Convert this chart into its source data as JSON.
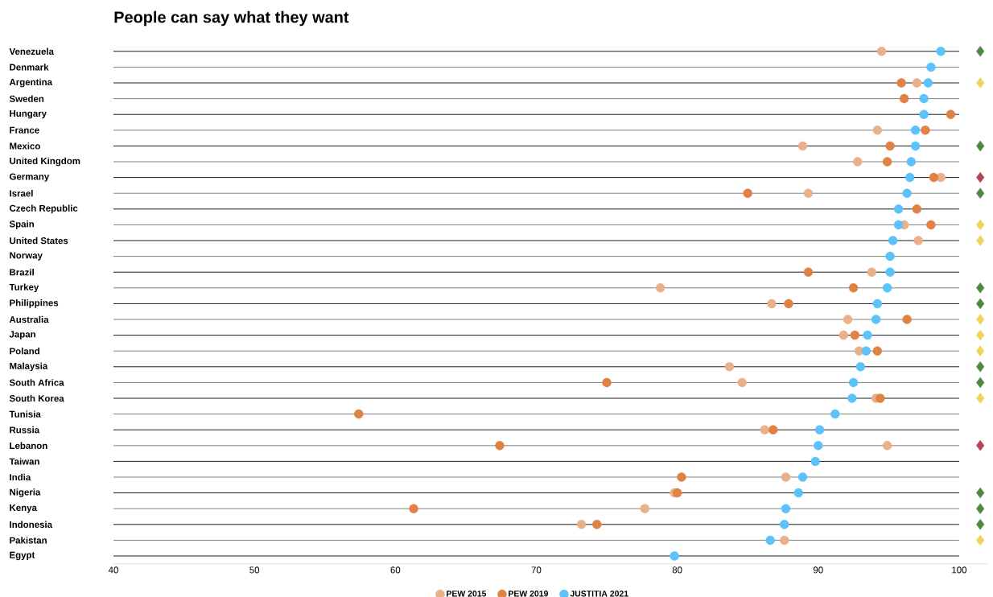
{
  "chart_data": {
    "type": "scatter",
    "title": "People can say what they want",
    "categories": [
      "Venezuela",
      "Denmark",
      "Argentina",
      "Sweden",
      "Hungary",
      "France",
      "Mexico",
      "United Kingdom",
      "Germany",
      "Israel",
      "Czech Republic",
      "Spain",
      "United States",
      "Norway",
      "Brazil",
      "Turkey",
      "Philippines",
      "Australia",
      "Japan",
      "Poland",
      "Malaysia",
      "South Africa",
      "South Korea",
      "Tunisia",
      "Russia",
      "Lebanon",
      "Taiwan",
      "India",
      "Nigeria",
      "Kenya",
      "Indonesia",
      "Pakistan",
      "Egypt"
    ],
    "orientation": "horizontal",
    "marker": "circle",
    "grid": "y",
    "legend": "bottom",
    "xlim": [
      40,
      102
    ],
    "xticks": [
      40,
      50,
      60,
      70,
      80,
      90,
      100
    ],
    "series": [
      {
        "name": "PEW 2015",
        "color": "#eab08a",
        "values": [
          94.5,
          null,
          97.0,
          null,
          null,
          94.2,
          88.9,
          92.8,
          98.7,
          89.3,
          null,
          96.1,
          97.1,
          null,
          93.8,
          78.8,
          86.7,
          92.1,
          91.8,
          92.9,
          83.7,
          84.6,
          94.1,
          null,
          86.2,
          94.9,
          null,
          87.7,
          79.8,
          77.7,
          73.2,
          87.6,
          null
        ]
      },
      {
        "name": "PEW 2019",
        "color": "#df8244",
        "values": [
          null,
          null,
          95.9,
          96.1,
          99.4,
          97.6,
          95.1,
          94.9,
          98.2,
          85.0,
          97.0,
          98.0,
          null,
          null,
          89.3,
          92.5,
          87.9,
          96.3,
          92.6,
          94.2,
          null,
          75.0,
          94.4,
          57.4,
          86.8,
          67.4,
          null,
          80.3,
          80.0,
          61.3,
          74.3,
          null,
          null
        ]
      },
      {
        "name": "JUSTITIA 2021",
        "color": "#5bc3f9",
        "values": [
          98.7,
          98.0,
          97.8,
          97.5,
          97.5,
          96.9,
          96.9,
          96.6,
          96.5,
          96.3,
          95.7,
          95.7,
          95.3,
          95.1,
          95.1,
          94.9,
          94.2,
          94.1,
          93.5,
          93.4,
          93.0,
          92.5,
          92.4,
          91.2,
          90.1,
          90.0,
          89.8,
          88.9,
          88.6,
          87.7,
          87.6,
          86.6,
          79.8
        ]
      },
      {
        "marker": "diamond",
        "values": [
          101.5,
          null,
          101.5,
          null,
          null,
          null,
          101.5,
          null,
          101.5,
          101.5,
          null,
          101.5,
          101.5,
          null,
          null,
          101.5,
          101.5,
          101.5,
          101.5,
          101.5,
          101.5,
          101.5,
          101.5,
          null,
          null,
          101.5,
          null,
          null,
          101.5,
          101.5,
          101.5,
          101.5,
          null
        ],
        "colors": [
          "#4a8c3c",
          null,
          "#f2d35a",
          null,
          null,
          null,
          "#4a8c3c",
          null,
          "#b5445a",
          "#4a8c3c",
          null,
          "#f2d35a",
          "#f2d35a",
          null,
          null,
          "#4a8c3c",
          "#4a8c3c",
          "#f2d35a",
          "#f2d35a",
          "#f2d35a",
          "#4a8c3c",
          "#4a8c3c",
          "#f2d35a",
          null,
          null,
          "#b5445a",
          null,
          null,
          "#4a8c3c",
          "#4a8c3c",
          "#4a8c3c",
          "#f2d35a",
          null
        ]
      }
    ]
  }
}
